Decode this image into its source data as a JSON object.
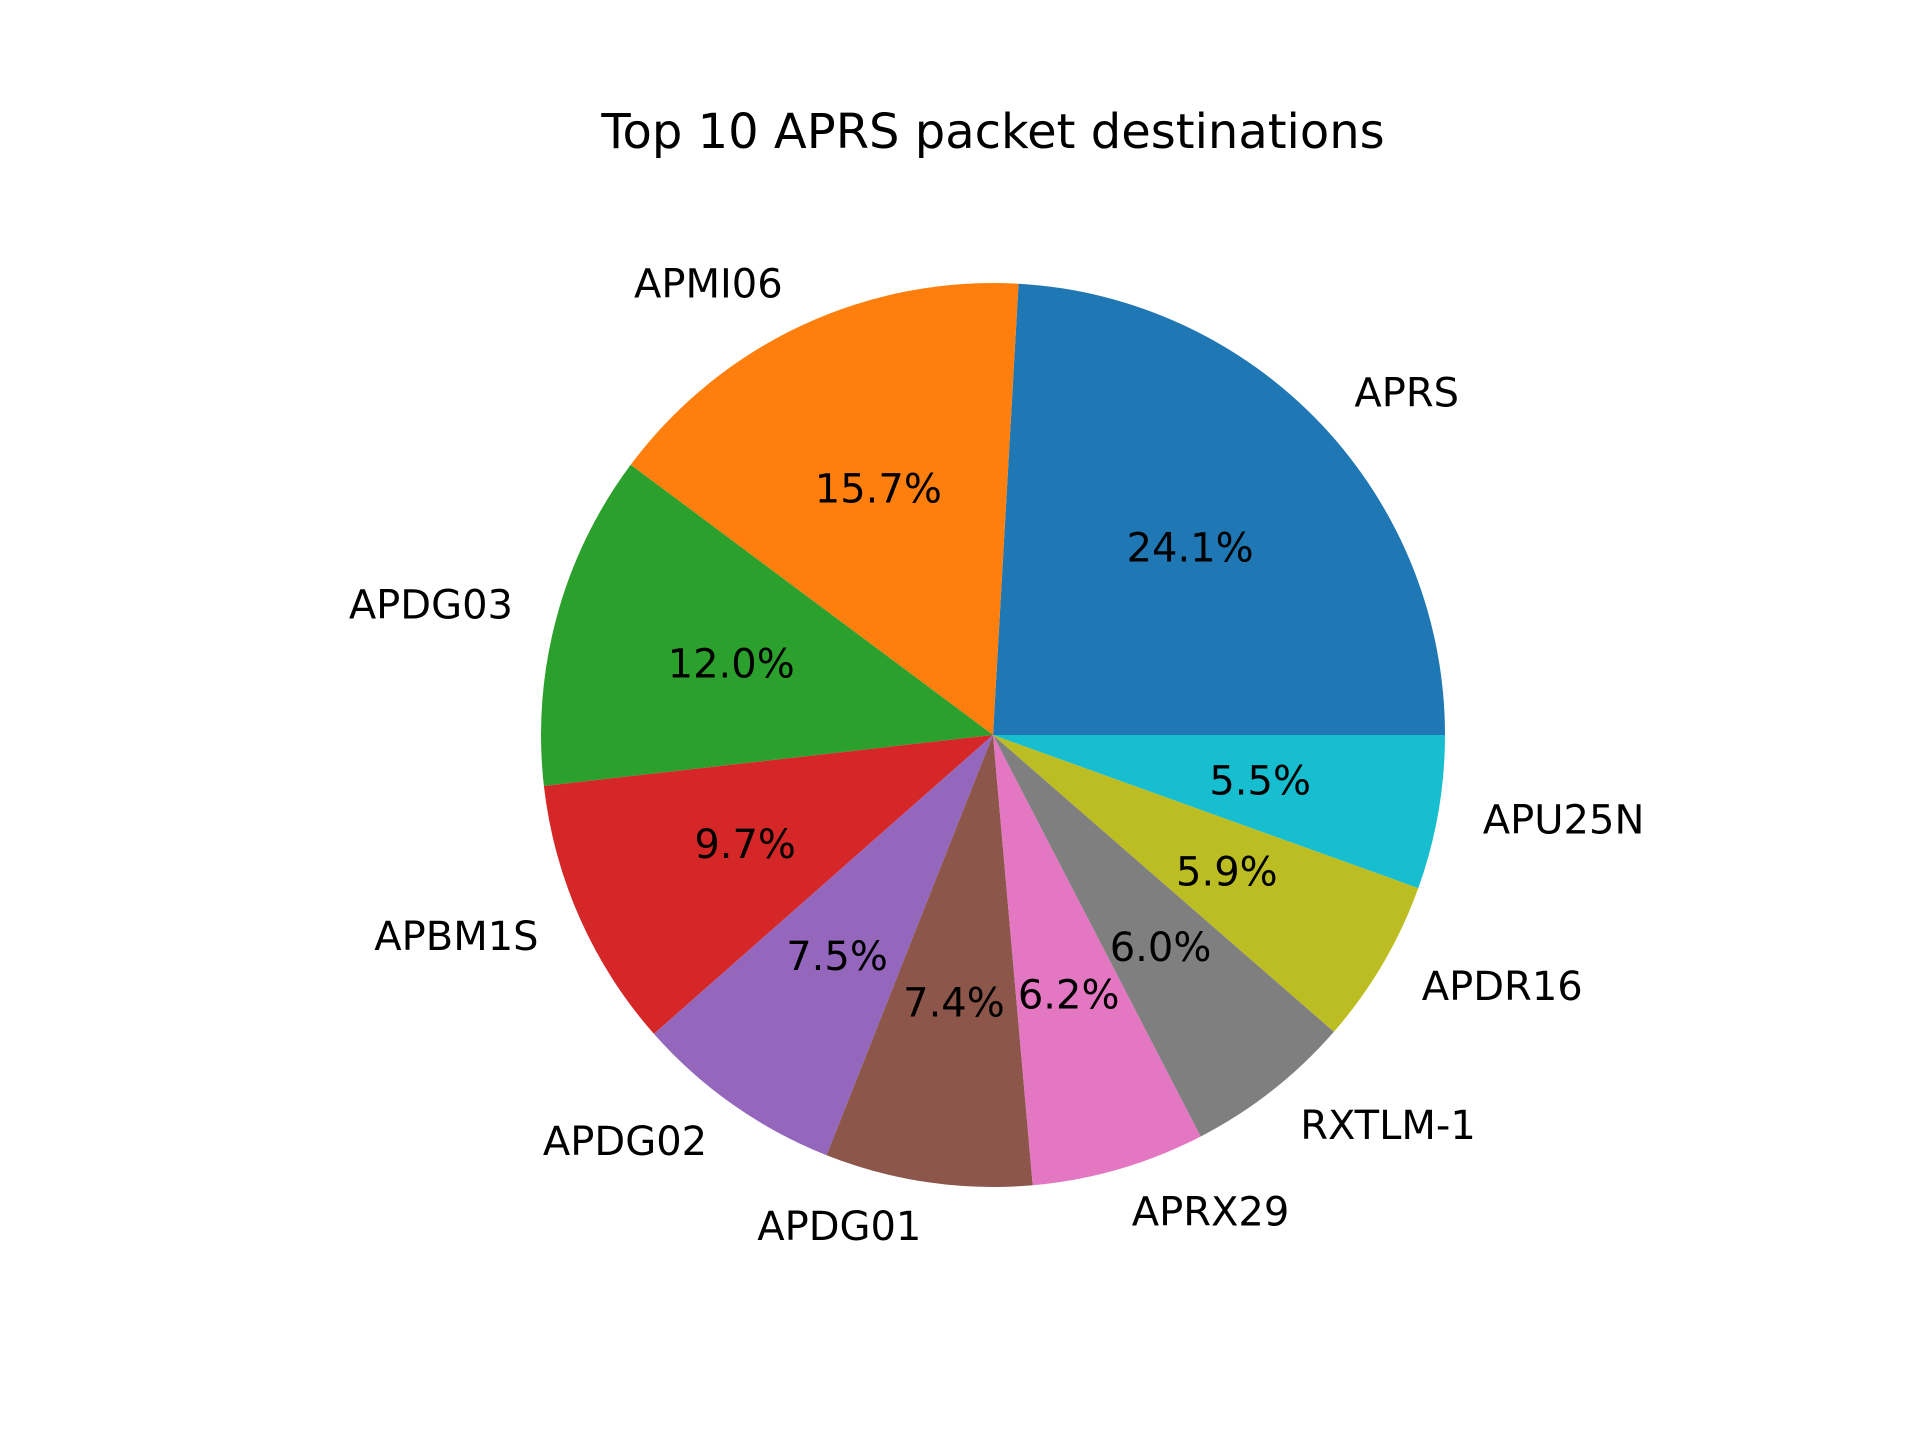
{
  "chart_data": {
    "type": "pie",
    "title": "Top 10 APRS packet destinations",
    "labels": [
      "APRS",
      "APMI06",
      "APDG03",
      "APBM1S",
      "APDG02",
      "APDG01",
      "APRX29",
      "RXTLM-1",
      "APDR16",
      "APU25N"
    ],
    "values": [
      24.1,
      15.7,
      12.0,
      9.7,
      7.5,
      7.4,
      6.2,
      6.0,
      5.9,
      5.5
    ],
    "percent_labels": [
      "24.1%",
      "15.7%",
      "12.0%",
      "9.7%",
      "7.5%",
      "7.4%",
      "6.2%",
      "6.0%",
      "5.9%",
      "5.5%"
    ],
    "colors": [
      "#1f77b4",
      "#ff7f0e",
      "#2ca02c",
      "#d62728",
      "#9467bd",
      "#8c564b",
      "#e377c2",
      "#7f7f7f",
      "#bcbd22",
      "#17becf"
    ],
    "start_angle": 0,
    "direction": "counterclockwise"
  }
}
